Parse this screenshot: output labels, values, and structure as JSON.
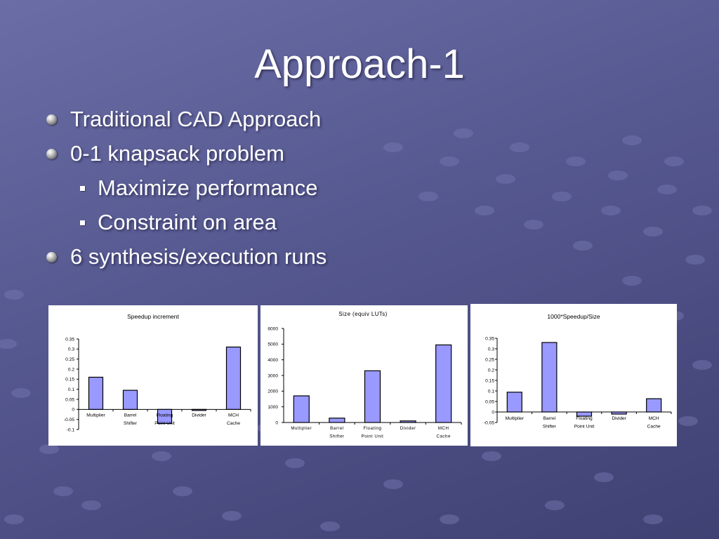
{
  "slide": {
    "title": "Approach-1",
    "bullets": [
      {
        "text": "Traditional CAD Approach",
        "level": 1
      },
      {
        "text": "0-1 knapsack problem",
        "level": 1
      },
      {
        "text": "Maximize performance",
        "level": 2
      },
      {
        "text": "Constraint on area",
        "level": 2
      },
      {
        "text": "6 synthesis/execution runs",
        "level": 1
      }
    ]
  },
  "colors": {
    "bar_fill": "#9999ff",
    "bar_stroke": "#000000",
    "panel_background": "#ffffff"
  },
  "chart_data": [
    {
      "type": "bar",
      "title": "Speedup increment",
      "categories": [
        [
          "Multiplier"
        ],
        [
          "Barrel",
          "Shifter"
        ],
        [
          "Floating",
          "Point Unit"
        ],
        [
          "Divider"
        ],
        [
          "MCH",
          "Cache"
        ]
      ],
      "values": [
        0.16,
        0.095,
        -0.07,
        0,
        0.31
      ],
      "ylim": [
        -0.1,
        0.35
      ],
      "yticks": [
        "0.35",
        "0.3",
        "0.25",
        "0.2",
        "0.15",
        "0.1",
        "0.05",
        "0",
        "-0.05",
        "-0.1"
      ],
      "xlabel": "",
      "ylabel": "",
      "grid": false
    },
    {
      "type": "bar",
      "title": "Size (equiv LUTs)",
      "categories": [
        [
          "Multiplier"
        ],
        [
          "Barrel",
          "Shifter"
        ],
        [
          "Floating",
          "Point Unit"
        ],
        [
          "Divider"
        ],
        [
          "MCH",
          "Cache"
        ]
      ],
      "values": [
        1700,
        280,
        3300,
        100,
        4950
      ],
      "ylim": [
        0,
        6000
      ],
      "yticks": [
        "6000",
        "5000",
        "4000",
        "3000",
        "2000",
        "1000",
        "0"
      ],
      "xlabel": "",
      "ylabel": "",
      "grid": false
    },
    {
      "type": "bar",
      "title": "1000*Speedup/Size",
      "categories": [
        [
          "Multiplier"
        ],
        [
          "Barrel",
          "Shifter"
        ],
        [
          "Floating",
          "Point Unit"
        ],
        [
          "Divider"
        ],
        [
          "MCH",
          "Cache"
        ]
      ],
      "values": [
        0.094,
        0.33,
        -0.02,
        -0.01,
        0.063
      ],
      "ylim": [
        -0.05,
        0.35
      ],
      "yticks": [
        "0.35",
        "0.3",
        "0.25",
        "0.2",
        "0.15",
        "0.1",
        "0.05",
        "0",
        "-0.05"
      ],
      "xlabel": "",
      "ylabel": "",
      "grid": false
    }
  ]
}
